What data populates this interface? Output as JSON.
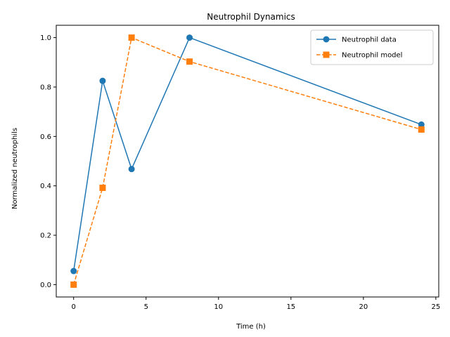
{
  "chart_data": {
    "type": "line",
    "title": "Neutrophil Dynamics",
    "xlabel": "Time (h)",
    "ylabel": "Normalized neutrophils",
    "xlim": [
      -1.2,
      25.2
    ],
    "ylim": [
      -0.05,
      1.05
    ],
    "xticks": [
      0,
      5,
      10,
      15,
      20,
      25
    ],
    "xtick_labels": [
      "0",
      "5",
      "10",
      "15",
      "20",
      "25"
    ],
    "yticks": [
      0.0,
      0.2,
      0.4,
      0.6,
      0.8,
      1.0
    ],
    "ytick_labels": [
      "0.0",
      "0.2",
      "0.4",
      "0.6",
      "0.8",
      "1.0"
    ],
    "grid": false,
    "legend_position": "top-right",
    "series": [
      {
        "name": "Neutrophil data",
        "x": [
          0,
          2,
          4,
          8,
          24
        ],
        "y": [
          0.055,
          0.825,
          0.468,
          1.0,
          0.648
        ],
        "color": "#1f77b4",
        "linestyle": "solid",
        "marker": "circle"
      },
      {
        "name": "Neutrophil model",
        "x": [
          0,
          2,
          4,
          8,
          24
        ],
        "y": [
          0.0,
          0.392,
          1.0,
          0.903,
          0.628
        ],
        "color": "#ff7f0e",
        "linestyle": "dashed",
        "marker": "square"
      }
    ]
  }
}
